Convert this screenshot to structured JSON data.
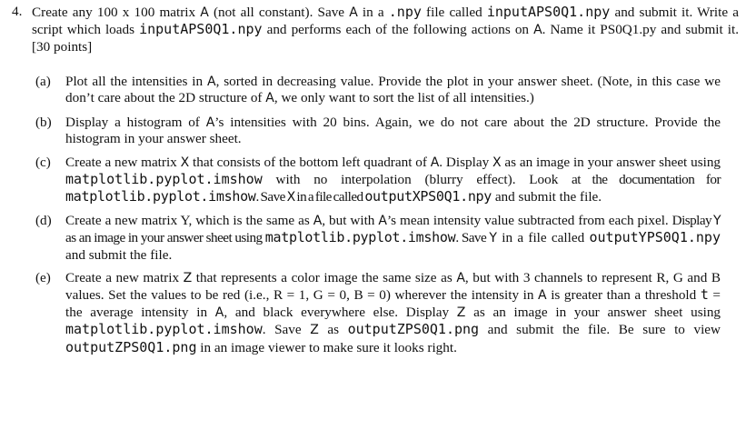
{
  "question": {
    "number": "4.",
    "t1": "Create any 100 x 100 matrix ",
    "A1": "A",
    "t2": " (not all constant). Save ",
    "A2": "A",
    "t3": " in a ",
    "npy": ".npy",
    "t4": " file called ",
    "file1": "inputAPS0Q1.npy",
    "t5": " and submit it. Write a script which loads ",
    "file2": "inputAPS0Q1.npy",
    "t6": " and performs each of the following actions on ",
    "A3": "A",
    "t7": ". Name it PS0Q1.py and submit it. [30 points]"
  },
  "parts": {
    "a": {
      "label": "(a)",
      "t1": "Plot all the intensities in ",
      "A1": "A",
      "t2": ", sorted in decreasing value. Provide the plot in your answer sheet. (Note, in this case we don’t care about the 2D structure of ",
      "A2": "A",
      "t3": ", we only want to sort the list of all intensities.)"
    },
    "b": {
      "label": "(b)",
      "t1": "Display a histogram of ",
      "A1": "A",
      "t2": "’s intensities with 20 bins. Again, we do not care about the 2D structure. Provide the histogram in your answer sheet."
    },
    "c": {
      "label": "(c)",
      "t1": "Create a new matrix ",
      "X1": "X",
      "t2": " that consists of the bottom left quadrant of ",
      "A1": "A",
      "t3": ". Display ",
      "X2": "X",
      "t4": " as an image in your answer sheet using ",
      "code1": "matplotlib.pyplot.imshow",
      "t5": " with no interpolation (blurry effect). Look ",
      "t6": "at the documentation for ",
      "code2": "matplotlib.pyplot.imshow",
      "t7": ". Save ",
      "X3": "X",
      "t8": " in a file called ",
      "file": "outputXPS0Q1.npy",
      "t9": " and submit the file."
    },
    "d": {
      "label": "(d)",
      "t1": "Create a new matrix Y, which is the same as ",
      "A1": "A",
      "t2": ", but with ",
      "A2": "A",
      "t3": "’s mean intensity value subtracted from each pixel. ",
      "t4": "Display ",
      "Y1": "Y",
      "t5": " as an image in your answer sheet using ",
      "code1": "matplotlib.pyplot.imshow",
      "t6": ". Save ",
      "Y2": "Y",
      "t7": " in a file called ",
      "file": "outputYPS0Q1.npy",
      "t8": " and submit the file."
    },
    "e": {
      "label": "(e)",
      "t1": "Create a new matrix ",
      "Z1": "Z",
      "t2": " that represents a color image the same size as ",
      "A1": "A",
      "t3": ", but with 3 channels to represent R, G and B values. Set the values to be red (i.e., R = 1, G = 0, B = 0) wherever the intensity in ",
      "A2": "A",
      "t4": " is greater than a threshold ",
      "t_var": "t",
      "t5": " = the average intensity in ",
      "A3": "A",
      "t6": ", and black everywhere else. Display ",
      "Z2": "Z",
      "t7": " as an image in your answer sheet using ",
      "code1": "matplotlib.pyplot.imshow",
      "t8": ". Save ",
      "Z3": "Z",
      "t9": " as ",
      "file1": "outputZPS0Q1.png",
      "t10": " and submit the file. Be sure to view ",
      "file2": "outputZPS0Q1.png",
      "t11": " in an image viewer to make sure it looks right."
    }
  }
}
